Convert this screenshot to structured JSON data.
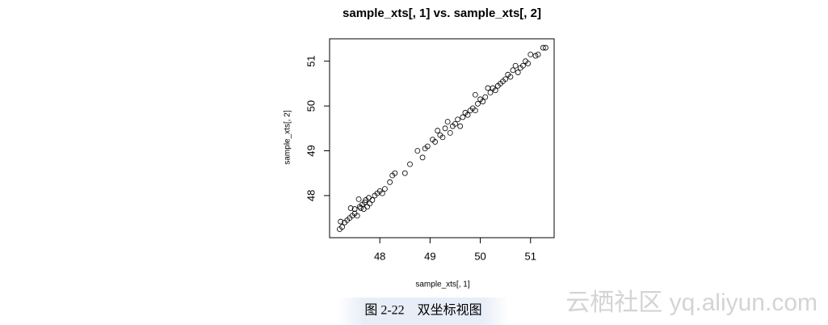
{
  "chart_data": {
    "type": "scatter",
    "title": "sample_xts[, 1] vs. sample_xts[, 2]",
    "x_label": "sample_xts[, 1]",
    "y_label": "sample_xts[, 2]",
    "x": [
      47.2,
      47.22,
      47.25,
      47.3,
      47.35,
      47.4,
      47.42,
      47.45,
      47.5,
      47.5,
      47.55,
      47.58,
      47.6,
      47.62,
      47.65,
      47.68,
      47.7,
      47.72,
      47.75,
      47.78,
      47.8,
      47.85,
      47.9,
      47.95,
      48.0,
      48.05,
      48.1,
      48.2,
      48.25,
      48.3,
      48.5,
      48.6,
      48.75,
      48.85,
      48.9,
      48.95,
      49.05,
      49.1,
      49.15,
      49.2,
      49.25,
      49.3,
      49.35,
      49.4,
      49.45,
      49.5,
      49.55,
      49.6,
      49.65,
      49.7,
      49.75,
      49.8,
      49.85,
      49.9,
      49.9,
      49.95,
      50.0,
      50.05,
      50.1,
      50.15,
      50.2,
      50.25,
      50.3,
      50.35,
      50.4,
      50.45,
      50.5,
      50.55,
      50.6,
      50.65,
      50.7,
      50.75,
      50.8,
      50.85,
      50.9,
      50.95,
      51.0,
      51.1,
      51.15,
      51.25,
      51.3
    ],
    "y": [
      47.25,
      47.42,
      47.3,
      47.4,
      47.45,
      47.5,
      47.72,
      47.55,
      47.6,
      47.7,
      47.55,
      47.92,
      47.75,
      47.72,
      47.8,
      47.7,
      47.85,
      47.9,
      47.75,
      47.95,
      47.82,
      47.9,
      48.0,
      48.05,
      48.1,
      48.05,
      48.15,
      48.3,
      48.45,
      48.5,
      48.5,
      48.7,
      49.0,
      48.85,
      49.05,
      49.1,
      49.25,
      49.2,
      49.45,
      49.35,
      49.3,
      49.5,
      49.65,
      49.4,
      49.55,
      49.6,
      49.7,
      49.55,
      49.75,
      49.85,
      49.8,
      49.9,
      49.95,
      50.25,
      49.9,
      50.05,
      50.15,
      50.1,
      50.2,
      50.4,
      50.3,
      50.4,
      50.35,
      50.45,
      50.5,
      50.55,
      50.6,
      50.7,
      50.65,
      50.8,
      50.9,
      50.75,
      50.85,
      50.9,
      51.0,
      50.95,
      51.15,
      51.12,
      51.15,
      51.3,
      51.3
    ],
    "xlim": [
      47.0,
      51.47
    ],
    "ylim": [
      47.06,
      51.5
    ],
    "xticks": [
      48,
      49,
      50,
      51
    ],
    "yticks": [
      48,
      49,
      50,
      51
    ]
  },
  "caption": "图 2-22　双坐标视图",
  "watermark": "云栖社区 yq.aliyun.com"
}
